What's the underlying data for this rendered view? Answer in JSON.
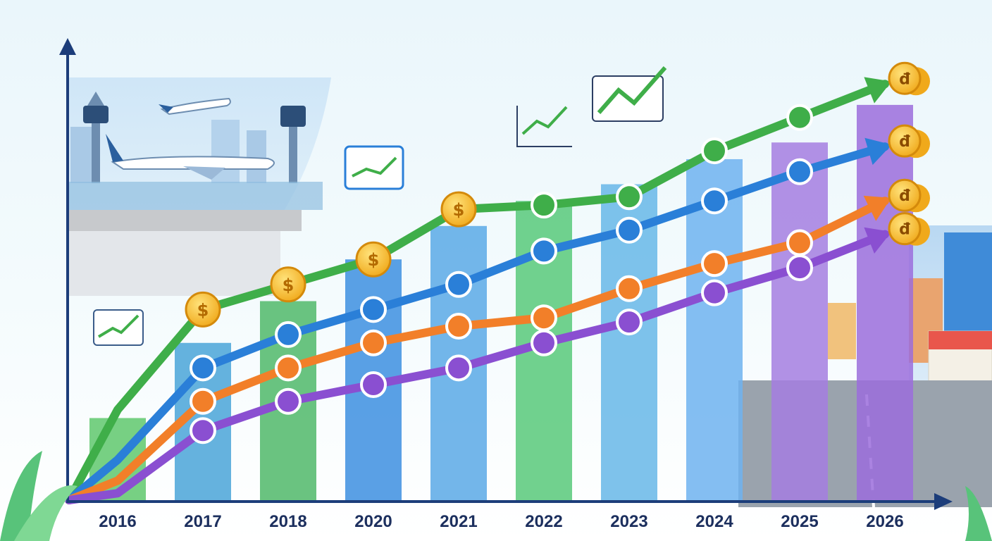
{
  "chart_data": {
    "type": "line",
    "categories": [
      "2016",
      "2017",
      "2018",
      "2020",
      "2021",
      "2022",
      "2023",
      "2024",
      "2025",
      "2026"
    ],
    "background_bars": [
      20,
      38,
      48,
      58,
      66,
      72,
      76,
      82,
      86,
      95
    ],
    "series": [
      {
        "color": "#3fae49",
        "values": [
          22,
          46,
          52,
          58,
          70,
          71,
          73,
          84,
          92,
          100
        ]
      },
      {
        "color": "#2a7fd8",
        "values": [
          10,
          32,
          40,
          46,
          52,
          60,
          65,
          72,
          79,
          85
        ]
      },
      {
        "color": "#f27f29",
        "values": [
          5,
          24,
          32,
          38,
          42,
          44,
          51,
          57,
          62,
          72
        ]
      },
      {
        "color": "#8a4fd1",
        "values": [
          2,
          17,
          24,
          28,
          32,
          38,
          43,
          50,
          56,
          64
        ]
      }
    ],
    "ylim": [
      0,
      110
    ],
    "grid": false,
    "legend": "none"
  },
  "icons": {
    "coin": "dong-coin-icon",
    "coffee": "coffee-cup-icon",
    "book": "open-book-icon",
    "headset": "headset-icon",
    "chart": "growth-chart-icon"
  }
}
